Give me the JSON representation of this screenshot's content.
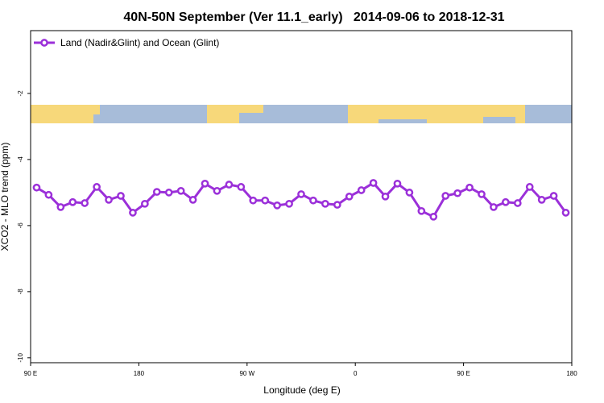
{
  "chart_data": {
    "type": "line",
    "title": "40N-50N September (Ver 11.1_early)   2014-09-06 to 2018-12-31",
    "xlabel": "Longitude (deg E)",
    "ylabel": "XCO2 - MLO trend (ppm)",
    "xlim": [
      90,
      540
    ],
    "xticks": [
      {
        "value": 90,
        "label": "90 E"
      },
      180,
      {
        "value": 270,
        "label": "90 W"
      },
      {
        "value": 360,
        "label": "0"
      },
      {
        "value": 450,
        "label": "90 E"
      },
      {
        "value": 540,
        "label": "180"
      }
    ],
    "ylim": [
      -10.15,
      -0.1
    ],
    "yticks": [
      -10,
      -8,
      -6,
      -4,
      -2
    ],
    "legend": "upper left",
    "x": [
      95,
      105,
      115,
      125,
      135,
      145,
      155,
      165,
      175,
      185,
      195,
      205,
      215,
      225,
      235,
      245,
      255,
      265,
      275,
      285,
      295,
      305,
      315,
      325,
      335,
      345,
      355,
      365,
      375,
      385,
      395,
      405,
      415,
      425,
      435,
      445,
      455,
      465,
      475,
      485,
      495,
      505,
      515,
      525,
      535
    ],
    "series": [
      {
        "name": "Land (Nadir&Glint) and Ocean (Glint)",
        "color": "#9b30d9",
        "values": [
          -4.85,
          -5.07,
          -5.44,
          -5.29,
          -5.32,
          -4.83,
          -5.22,
          -5.1,
          -5.61,
          -5.34,
          -4.98,
          -5.0,
          -4.95,
          -5.22,
          -4.73,
          -4.95,
          -4.76,
          -4.83,
          -5.24,
          -5.24,
          -5.39,
          -5.34,
          -5.05,
          -5.24,
          -5.34,
          -5.37,
          -5.12,
          -4.93,
          -4.71,
          -5.12,
          -4.73,
          -5.0,
          -5.56,
          -5.73,
          -5.1,
          -5.02,
          -4.85,
          -5.05,
          -5.44,
          -5.29,
          -5.32,
          -4.83,
          -5.22,
          -5.1,
          -5.61
        ]
      }
    ]
  }
}
